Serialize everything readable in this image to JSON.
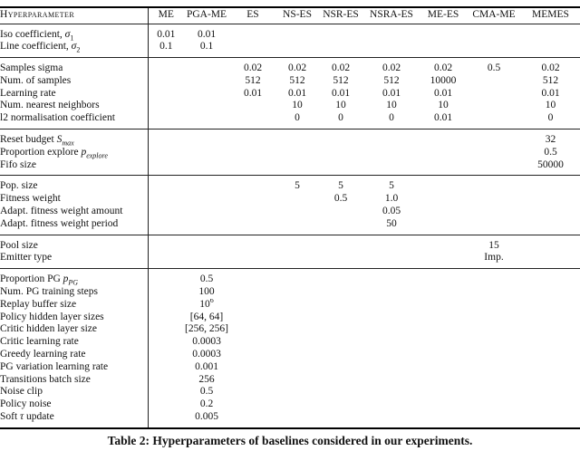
{
  "page": {
    "background": "#ffffff",
    "text_color": "#111111",
    "rule_color": "#222222"
  },
  "caption": "Table 2: Hyperparameters of baselines considered in our experiments.",
  "table": {
    "header_label": "Hyperparameter",
    "columns": [
      "ME",
      "PGA-ME",
      "ES",
      "NS-ES",
      "NSR-ES",
      "NSRA-ES",
      "ME-ES",
      "CMA-ME",
      "MEMES"
    ],
    "sections": [
      {
        "rows": [
          {
            "label": "Iso coefficient, <i>σ</i><sub>1</sub>",
            "values": [
              "0.01",
              "0.01",
              "",
              "",
              "",
              "",
              "",
              "",
              ""
            ]
          },
          {
            "label": "Line coefficient, <i>σ</i><sub>2</sub>",
            "values": [
              "0.1",
              "0.1",
              "",
              "",
              "",
              "",
              "",
              "",
              ""
            ]
          }
        ]
      },
      {
        "rows": [
          {
            "label": "Samples sigma",
            "values": [
              "",
              "",
              "0.02",
              "0.02",
              "0.02",
              "0.02",
              "0.02",
              "0.5",
              "0.02"
            ]
          },
          {
            "label": "Num. of samples",
            "values": [
              "",
              "",
              "512",
              "512",
              "512",
              "512",
              "10000",
              "",
              "512"
            ]
          },
          {
            "label": "Learning rate",
            "values": [
              "",
              "",
              "0.01",
              "0.01",
              "0.01",
              "0.01",
              "0.01",
              "",
              "0.01"
            ]
          },
          {
            "label": "Num. nearest neighbors",
            "values": [
              "",
              "",
              "",
              "10",
              "10",
              "10",
              "10",
              "",
              "10"
            ]
          },
          {
            "label": "l2 normalisation coefficient",
            "values": [
              "",
              "",
              "",
              "0",
              "0",
              "0",
              "0.01",
              "",
              "0"
            ]
          }
        ]
      },
      {
        "rows": [
          {
            "label": "Reset budget <i>S<sub>max</sub></i>",
            "values": [
              "",
              "",
              "",
              "",
              "",
              "",
              "",
              "",
              "32"
            ]
          },
          {
            "label": "Proportion explore <i>p<sub>explore</sub></i>",
            "values": [
              "",
              "",
              "",
              "",
              "",
              "",
              "",
              "",
              "0.5"
            ]
          },
          {
            "label": "Fifo size",
            "values": [
              "",
              "",
              "",
              "",
              "",
              "",
              "",
              "",
              "50000"
            ]
          }
        ]
      },
      {
        "rows": [
          {
            "label": "Pop. size",
            "values": [
              "",
              "",
              "",
              "5",
              "5",
              "5",
              "",
              "",
              ""
            ]
          },
          {
            "label": "Fitness weight",
            "values": [
              "",
              "",
              "",
              "",
              "0.5",
              "1.0",
              "",
              "",
              ""
            ]
          },
          {
            "label": "Adapt. fitness weight amount",
            "values": [
              "",
              "",
              "",
              "",
              "",
              "0.05",
              "",
              "",
              ""
            ]
          },
          {
            "label": "Adapt. fitness weight period",
            "values": [
              "",
              "",
              "",
              "",
              "",
              "50",
              "",
              "",
              ""
            ]
          }
        ]
      },
      {
        "rows": [
          {
            "label": "Pool size",
            "values": [
              "",
              "",
              "",
              "",
              "",
              "",
              "",
              "15",
              ""
            ]
          },
          {
            "label": "Emitter type",
            "values": [
              "",
              "",
              "",
              "",
              "",
              "",
              "",
              "Imp.",
              ""
            ]
          }
        ]
      },
      {
        "rows": [
          {
            "label": "Proportion PG <i>p<sub>PG</sub></i>",
            "values": [
              "",
              "0.5",
              "",
              "",
              "",
              "",
              "",
              "",
              ""
            ]
          },
          {
            "label": "Num. PG training steps",
            "values": [
              "",
              "100",
              "",
              "",
              "",
              "",
              "",
              "",
              ""
            ]
          },
          {
            "label": "Replay buffer size",
            "values": [
              "",
              "10<sup>6</sup>",
              "",
              "",
              "",
              "",
              "",
              "",
              ""
            ]
          },
          {
            "label": "Policy hidden layer sizes",
            "values": [
              "",
              "[64, 64]",
              "",
              "",
              "",
              "",
              "",
              "",
              ""
            ]
          },
          {
            "label": "Critic hidden layer size",
            "values": [
              "",
              "[256, 256]",
              "",
              "",
              "",
              "",
              "",
              "",
              ""
            ]
          },
          {
            "label": "Critic learning rate",
            "values": [
              "",
              "0.0003",
              "",
              "",
              "",
              "",
              "",
              "",
              ""
            ]
          },
          {
            "label": "Greedy learning rate",
            "values": [
              "",
              "0.0003",
              "",
              "",
              "",
              "",
              "",
              "",
              ""
            ]
          },
          {
            "label": "PG variation learning rate",
            "values": [
              "",
              "0.001",
              "",
              "",
              "",
              "",
              "",
              "",
              ""
            ]
          },
          {
            "label": "Transitions batch size",
            "values": [
              "",
              "256",
              "",
              "",
              "",
              "",
              "",
              "",
              ""
            ]
          },
          {
            "label": "Noise clip",
            "values": [
              "",
              "0.5",
              "",
              "",
              "",
              "",
              "",
              "",
              ""
            ]
          },
          {
            "label": "Policy noise",
            "values": [
              "",
              "0.2",
              "",
              "",
              "",
              "",
              "",
              "",
              ""
            ]
          },
          {
            "label": "Soft <i>τ</i> update",
            "values": [
              "",
              "0.005",
              "",
              "",
              "",
              "",
              "",
              "",
              ""
            ]
          }
        ]
      }
    ]
  }
}
